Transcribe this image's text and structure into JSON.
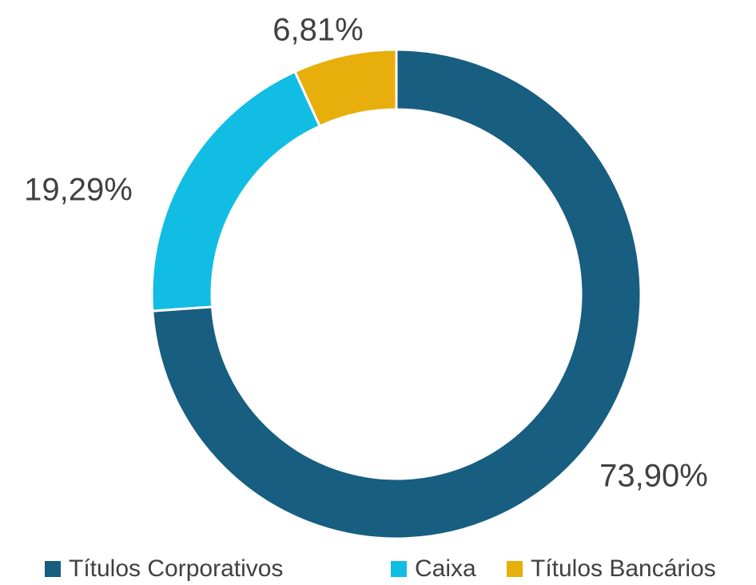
{
  "chart_data": {
    "type": "donut",
    "categories": [
      "Títulos Corporativos",
      "Caixa",
      "Títulos Bancários"
    ],
    "values": [
      73.9,
      19.29,
      6.81
    ],
    "value_labels": [
      "73,90%",
      "19,29%",
      "6,81%"
    ],
    "colors": [
      "#175e80",
      "#12bde3",
      "#e8ae0c"
    ],
    "legend": "bottom"
  }
}
